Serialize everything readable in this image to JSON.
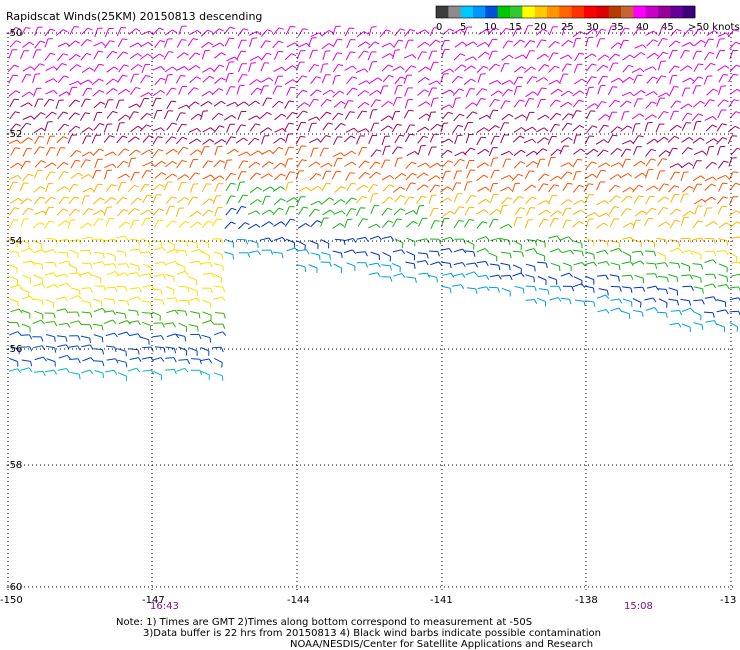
{
  "title": "Rapidscat Winds(25KM) 20150813 descending",
  "colorbar": {
    "ticks": [
      "0",
      "5",
      "10",
      "15",
      "20",
      "25",
      "30",
      "35",
      "40",
      "45",
      ">50 knots"
    ],
    "colors": [
      "#3c3c3c",
      "#8c8c8c",
      "#00c8ff",
      "#0096ff",
      "#0050dc",
      "#00c800",
      "#32c832",
      "#ffff00",
      "#ffc800",
      "#ff9600",
      "#ff6400",
      "#ff3200",
      "#ff0000",
      "#dc0000",
      "#b43c00",
      "#c86432",
      "#ff00ff",
      "#c800c8",
      "#960096",
      "#640096",
      "#3c0078"
    ]
  },
  "lat_labels": [
    "-50",
    "-52",
    "-54",
    "-56",
    "-58",
    "-60"
  ],
  "lon_labels": [
    "-150",
    "-147",
    "-144",
    "-141",
    "-138",
    "-13"
  ],
  "time_labels": [
    "16:43",
    "15:08"
  ],
  "notes": [
    "Note: 1) Times are GMT 2)Times along bottom correspond to measurement at -50S",
    "3)Data buffer is 22 hrs from 20150813 4) Black wind barbs indicate possible contamination",
    "NOAA/NESDIS/Center for Satellite Applications and Research"
  ]
}
